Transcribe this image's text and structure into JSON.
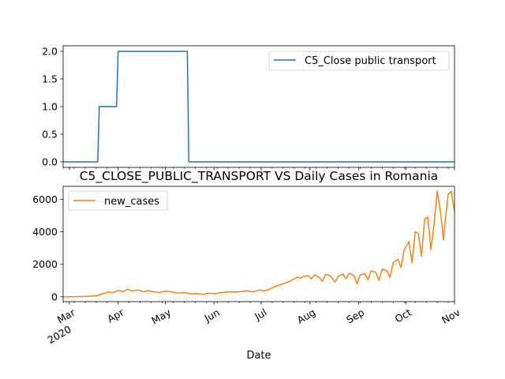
{
  "chart_data": [
    {
      "type": "line",
      "series": [
        {
          "name": "C5_Close public transport",
          "color": "#1f77b4",
          "x": [
            "2020-02-26",
            "2020-03-19",
            "2020-03-20",
            "2020-03-31",
            "2020-04-01",
            "2020-05-15",
            "2020-05-16",
            "2020-11-01"
          ],
          "values": [
            0,
            0,
            1,
            1,
            2,
            2,
            0,
            0
          ]
        }
      ],
      "ylim": [
        -0.1,
        2.1
      ],
      "yticks": [
        "0.0",
        "0.5",
        "1.0",
        "1.5",
        "2.0"
      ],
      "legend": "upper-right",
      "grid": false
    },
    {
      "type": "line",
      "title": "C5_CLOSE_PUBLIC_TRANSPORT VS Daily Cases in Romania",
      "xlabel": "Date",
      "series": [
        {
          "name": "new_cases",
          "color": "#ff7f0e",
          "x": [
            "2020-02-26",
            "2020-03-05",
            "2020-03-12",
            "2020-03-18",
            "2020-03-22",
            "2020-03-26",
            "2020-03-29",
            "2020-04-01",
            "2020-04-04",
            "2020-04-07",
            "2020-04-10",
            "2020-04-14",
            "2020-04-17",
            "2020-04-20",
            "2020-04-23",
            "2020-04-27",
            "2020-05-01",
            "2020-05-05",
            "2020-05-09",
            "2020-05-13",
            "2020-05-17",
            "2020-05-21",
            "2020-05-25",
            "2020-05-29",
            "2020-06-02",
            "2020-06-06",
            "2020-06-10",
            "2020-06-14",
            "2020-06-18",
            "2020-06-22",
            "2020-06-26",
            "2020-06-30",
            "2020-07-03",
            "2020-07-06",
            "2020-07-09",
            "2020-07-12",
            "2020-07-15",
            "2020-07-18",
            "2020-07-21",
            "2020-07-24",
            "2020-07-26",
            "2020-07-28",
            "2020-07-31",
            "2020-08-02",
            "2020-08-04",
            "2020-08-07",
            "2020-08-09",
            "2020-08-11",
            "2020-08-14",
            "2020-08-17",
            "2020-08-19",
            "2020-08-22",
            "2020-08-24",
            "2020-08-26",
            "2020-08-29",
            "2020-08-31",
            "2020-09-02",
            "2020-09-05",
            "2020-09-07",
            "2020-09-09",
            "2020-09-12",
            "2020-09-14",
            "2020-09-16",
            "2020-09-19",
            "2020-09-21",
            "2020-09-23",
            "2020-09-26",
            "2020-09-28",
            "2020-09-30",
            "2020-10-03",
            "2020-10-05",
            "2020-10-07",
            "2020-10-09",
            "2020-10-11",
            "2020-10-13",
            "2020-10-15",
            "2020-10-17",
            "2020-10-19",
            "2020-10-21",
            "2020-10-23",
            "2020-10-25",
            "2020-10-26",
            "2020-10-28",
            "2020-10-30",
            "2020-10-31",
            "2020-11-01"
          ],
          "values": [
            0,
            5,
            20,
            60,
            180,
            300,
            250,
            400,
            320,
            450,
            360,
            420,
            300,
            380,
            320,
            250,
            350,
            300,
            220,
            260,
            180,
            200,
            150,
            220,
            180,
            260,
            300,
            280,
            320,
            370,
            300,
            420,
            350,
            450,
            600,
            700,
            800,
            900,
            1050,
            1200,
            1150,
            1250,
            1300,
            1100,
            1350,
            1200,
            950,
            1380,
            1300,
            900,
            1250,
            1400,
            1100,
            1450,
            1300,
            800,
            1350,
            1420,
            1050,
            1600,
            1500,
            1000,
            1700,
            1600,
            1200,
            2100,
            2300,
            1800,
            2900,
            3400,
            2100,
            4000,
            3900,
            2500,
            4800,
            4900,
            2900,
            4500,
            6500,
            5300,
            3500,
            4600,
            6300,
            6500,
            5800,
            5300
          ],
          "legend": "upper-left"
        }
      ],
      "ylim": [
        -300,
        6800
      ],
      "yticks": [
        "0",
        "2000",
        "4000",
        "6000"
      ],
      "xticks": [
        {
          "date": "2020-03-01",
          "label": "Mar",
          "sub": "2020"
        },
        {
          "date": "2020-04-01",
          "label": "Apr",
          "sub": ""
        },
        {
          "date": "2020-05-01",
          "label": "May",
          "sub": ""
        },
        {
          "date": "2020-06-01",
          "label": "Jun",
          "sub": ""
        },
        {
          "date": "2020-07-01",
          "label": "Jul",
          "sub": ""
        },
        {
          "date": "2020-08-01",
          "label": "Aug",
          "sub": ""
        },
        {
          "date": "2020-09-01",
          "label": "Sep",
          "sub": ""
        },
        {
          "date": "2020-10-01",
          "label": "Oct",
          "sub": ""
        },
        {
          "date": "2020-11-01",
          "label": "Nov",
          "sub": ""
        }
      ],
      "grid": false
    }
  ]
}
